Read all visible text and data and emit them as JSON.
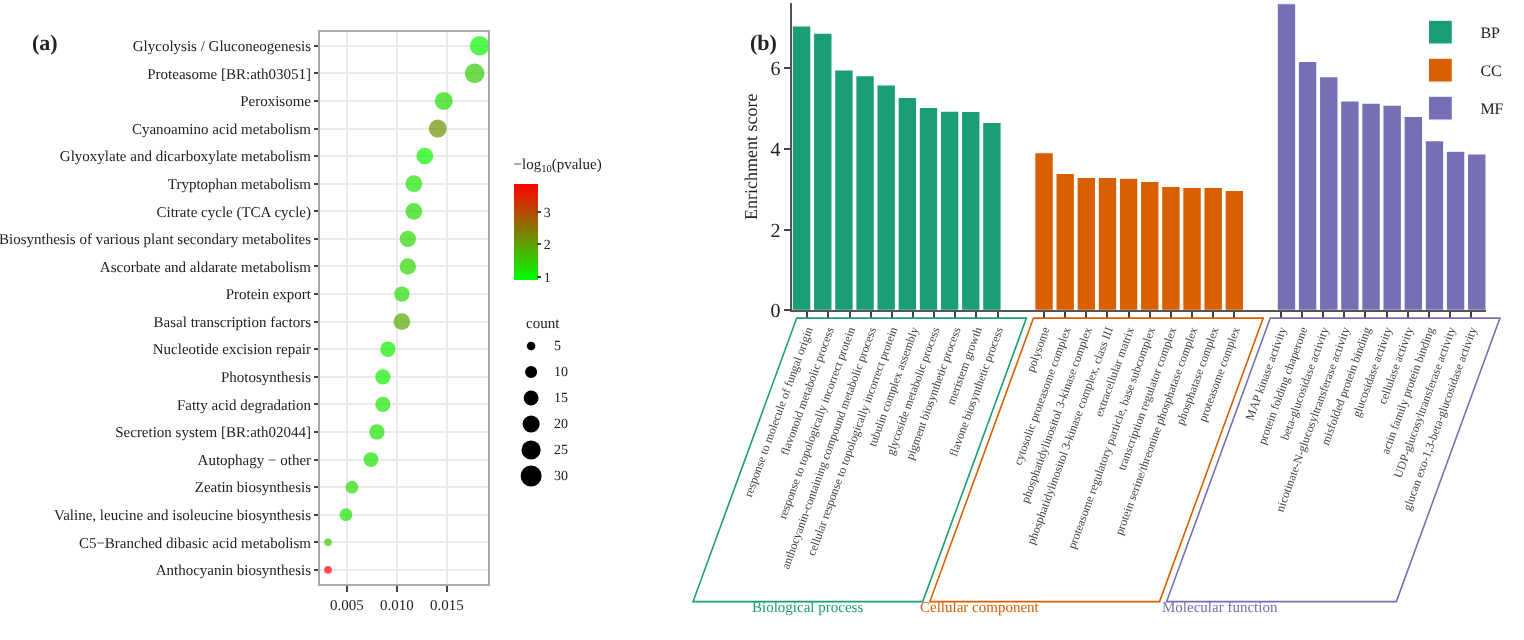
{
  "chart_data": [
    {
      "type": "bubble",
      "title": "(a)",
      "orientation": "horizontal",
      "categories": [
        "Glycolysis / Gluconeogenesis",
        "Proteasome [BR:ath03051]",
        "Peroxisome",
        "Cyanoamino acid metabolism",
        "Glyoxylate and dicarboxylate metabolism",
        "Tryptophan metabolism",
        "Citrate cycle (TCA cycle)",
        "Biosynthesis of various plant secondary metabolites",
        "Ascorbate and aldarate metabolism",
        "Protein export",
        "Basal transcription factors",
        "Nucleotide excision repair",
        "Photosynthesis",
        "Fatty acid degradation",
        "Secretion system [BR:ath02044]",
        "Autophagy − other",
        "Zeatin biosynthesis",
        "Valine, leucine and isoleucine biosynthesis",
        "C5−Branched dibasic acid metabolism",
        "Anthocyanin biosynthesis"
      ],
      "values": [
        0.0183,
        0.0178,
        0.0147,
        0.0141,
        0.0128,
        0.0117,
        0.0117,
        0.0111,
        0.0111,
        0.0105,
        0.0105,
        0.0091,
        0.0086,
        0.0086,
        0.008,
        0.0074,
        0.0055,
        0.0049,
        0.0031,
        0.0031
      ],
      "sizes": [
        26,
        26,
        22,
        22,
        19,
        19,
        19,
        18,
        18,
        16,
        19,
        16,
        16,
        16,
        16,
        15,
        11,
        11,
        4,
        4
      ],
      "size_legend": [
        5,
        10,
        15,
        20,
        25,
        30
      ],
      "legend_title": "count",
      "cvalues": [
        1.0,
        1.5,
        1.3,
        2.2,
        1.0,
        1.2,
        1.3,
        1.4,
        1.4,
        1.3,
        1.9,
        1.1,
        1.1,
        1.2,
        1.2,
        1.2,
        1.3,
        1.2,
        1.6,
        3.9
      ],
      "clim": [
        0.9,
        3.9
      ],
      "cticks": [
        1,
        2,
        3
      ],
      "clabel": "−log$_{10}$(pvalue)",
      "xlim": [
        0.0023,
        0.0191
      ],
      "xticks": [
        0.005,
        {
          "value": 0.01,
          "label": "0.010"
        },
        0.015
      ],
      "grid": true
    },
    {
      "type": "bar",
      "title": "(b)",
      "ylabel": "Enrichment score",
      "categories": [
        "response to molecule of fungal origin",
        "flavonoid metabolic process",
        "response to topologically incorrect protein",
        "anthocyanin-containing compound metabolic process",
        "cellular response to topologically incorrect protein",
        "tubulin complex assembly",
        "glycoside metabolic process",
        "pigment biosynthetic process",
        "meristem growth",
        "flavone biosynthetic process",
        "polysome",
        "cytosolic proteasome complex",
        "phosphatidylinositol 3-kinase complex",
        "phosphatidylinositol 3-kinase complex, class III",
        "extracellular matrix",
        "proteasome regulatory particle, base subcomplex",
        "transcription regulator complex",
        "protein serine/threonine phosphatase complex",
        "phosphatase complex",
        "proteasome complex",
        "MAP kinase activity",
        "protein folding chaperone",
        "beta-glucosidase activity",
        "nicotinate-N-glucosyltransferase activity",
        "misfolded protein binding",
        "glucosidase activity",
        "cellulase activity",
        "actin family protein binding",
        "UDP-glucosyltransferase activity",
        "glucan exo-1,3-beta-glucosidase activity"
      ],
      "series": [
        {
          "name": "BP",
          "color": "#1b9e77",
          "values": [
            7.04,
            6.86,
            5.95,
            5.81,
            5.58,
            5.27,
            5.02,
            4.93,
            4.92,
            4.65,
            null,
            null,
            null,
            null,
            null,
            null,
            null,
            null,
            null,
            null,
            null,
            null,
            null,
            null,
            null,
            null,
            null,
            null,
            null,
            null
          ]
        },
        {
          "name": "CC",
          "color": "#d95f02",
          "values": [
            null,
            null,
            null,
            null,
            null,
            null,
            null,
            null,
            null,
            null,
            3.9,
            3.39,
            3.29,
            3.29,
            3.27,
            3.19,
            3.07,
            3.04,
            3.04,
            2.97,
            null,
            null,
            null,
            null,
            null,
            null,
            null,
            null,
            null,
            null
          ]
        },
        {
          "name": "MF",
          "color": "#7570b3",
          "values": [
            null,
            null,
            null,
            null,
            null,
            null,
            null,
            null,
            null,
            null,
            null,
            null,
            null,
            null,
            null,
            null,
            null,
            null,
            null,
            null,
            7.59,
            6.16,
            5.78,
            5.18,
            5.13,
            5.08,
            4.8,
            4.2,
            3.94,
            3.87
          ]
        }
      ],
      "ylim": [
        0,
        7.6
      ],
      "yticks": [
        0,
        2,
        4,
        6
      ],
      "legend": "top right",
      "annotations": [
        "Biological process",
        "Cellular component",
        "Molecular function"
      ]
    }
  ]
}
